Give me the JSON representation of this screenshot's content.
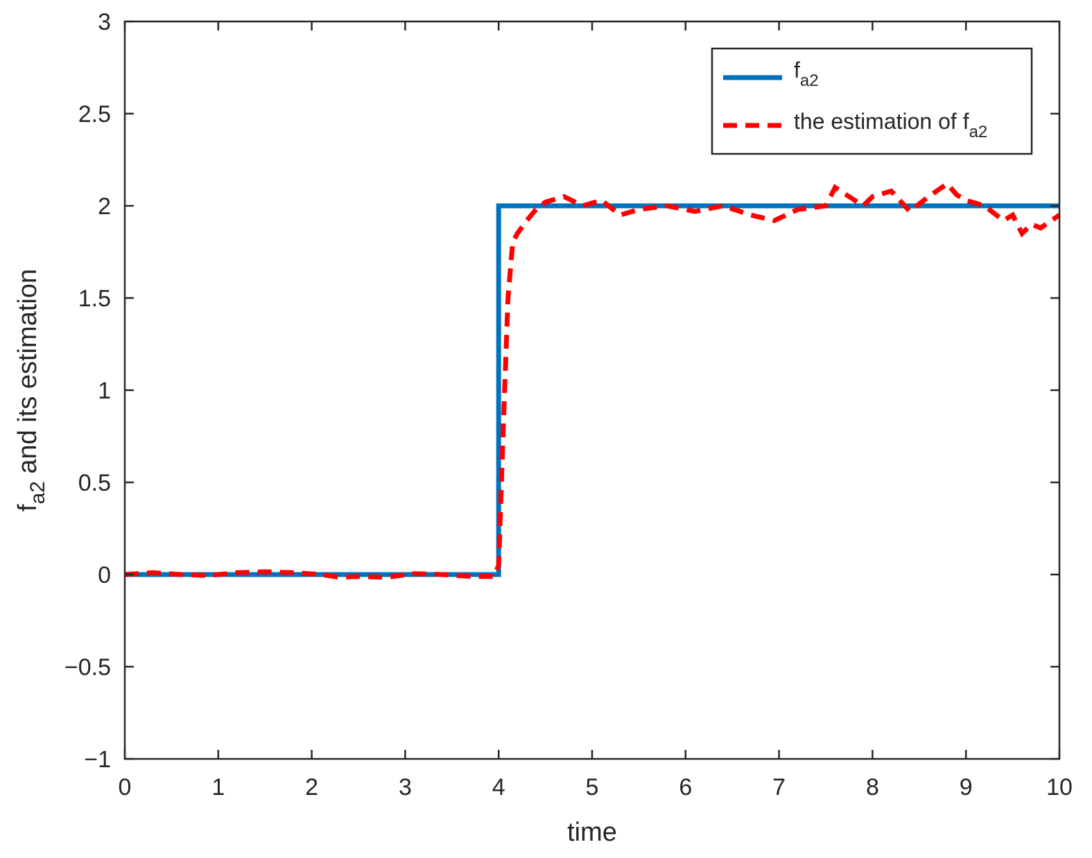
{
  "chart_data": {
    "type": "line",
    "xlabel": {
      "main": "time"
    },
    "ylabel": {
      "prefix": "f",
      "sub": "a2",
      "suffix": " and its estimation"
    },
    "xlim": [
      0,
      10
    ],
    "ylim": [
      -1,
      3
    ],
    "xticks": [
      0,
      1,
      2,
      3,
      4,
      5,
      6,
      7,
      8,
      9,
      10
    ],
    "xtick_labels": [
      "0",
      "1",
      "2",
      "3",
      "4",
      "5",
      "6",
      "7",
      "8",
      "9",
      "10"
    ],
    "yticks": [
      -1,
      -0.5,
      0,
      0.5,
      1,
      1.5,
      2,
      2.5,
      3
    ],
    "ytick_labels": [
      "−1",
      "−0.5",
      "0",
      "0.5",
      "1",
      "1.5",
      "2",
      "2.5",
      "3"
    ],
    "grid": false,
    "legend_position": "top-right",
    "series": [
      {
        "name": {
          "prefix": "f",
          "sub": "a2"
        },
        "color": "#0072BD",
        "style": "solid",
        "x": [
          0,
          4,
          4,
          10
        ],
        "y": [
          0,
          0,
          2,
          2
        ]
      },
      {
        "name": {
          "prefix": "the estimation of f",
          "sub": "a2"
        },
        "color": "#FF0000",
        "style": "dashed",
        "x": [
          0,
          0.3,
          0.6,
          0.9,
          1.2,
          1.5,
          1.8,
          2.1,
          2.3,
          2.5,
          2.8,
          3.1,
          3.4,
          3.7,
          3.95,
          4.0,
          4.05,
          4.1,
          4.15,
          4.2,
          4.3,
          4.4,
          4.5,
          4.7,
          4.9,
          5.1,
          5.3,
          5.5,
          5.8,
          6.1,
          6.4,
          6.7,
          6.95,
          7.2,
          7.5,
          7.6,
          7.9,
          8.0,
          8.2,
          8.4,
          8.6,
          8.8,
          8.9,
          9.0,
          9.2,
          9.4,
          9.5,
          9.6,
          9.7,
          9.8,
          10.0
        ],
        "y": [
          0,
          0.01,
          0,
          -0.005,
          0.01,
          0.015,
          0.01,
          0,
          -0.015,
          -0.01,
          -0.015,
          0.005,
          0,
          -0.01,
          -0.01,
          0.05,
          0.8,
          1.5,
          1.8,
          1.85,
          1.92,
          1.98,
          2.02,
          2.05,
          2.0,
          2.03,
          1.95,
          1.98,
          2.0,
          1.97,
          2.0,
          1.95,
          1.92,
          1.98,
          2.0,
          2.1,
          2.0,
          2.05,
          2.08,
          1.97,
          2.05,
          2.12,
          2.06,
          2.03,
          2.0,
          1.92,
          1.95,
          1.85,
          1.9,
          1.88,
          1.95
        ]
      }
    ]
  }
}
